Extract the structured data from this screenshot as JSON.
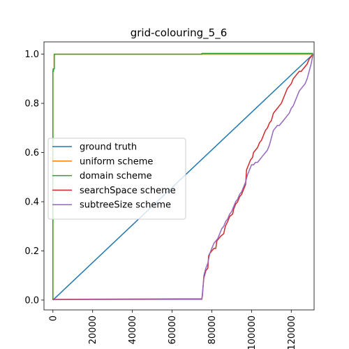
{
  "chart_data": {
    "type": "line",
    "title": "grid-colouring_5_6",
    "xlabel": "",
    "ylabel": "",
    "xlim": [
      -4500,
      131500
    ],
    "ylim": [
      -0.04,
      1.05
    ],
    "x_ticks": [
      0,
      20000,
      40000,
      60000,
      80000,
      100000,
      120000
    ],
    "x_tick_labels": [
      "0",
      "20000",
      "40000",
      "60000",
      "80000",
      "100000",
      "120000"
    ],
    "y_ticks": [
      0.0,
      0.2,
      0.4,
      0.6,
      0.8,
      1.0
    ],
    "y_tick_labels": [
      "0.0",
      "0.2",
      "0.4",
      "0.6",
      "0.8",
      "1.0"
    ],
    "grid": false,
    "legend_position": "center-left",
    "series": [
      {
        "name": "ground truth",
        "color": "#1f77b4",
        "points": [
          [
            0,
            0.0
          ],
          [
            131000,
            1.0
          ]
        ]
      },
      {
        "name": "uniform scheme",
        "color": "#ff7f0e",
        "points": [
          [
            0,
            0.0
          ],
          [
            0,
            0.94
          ],
          [
            600,
            0.94
          ],
          [
            600,
            1.0
          ],
          [
            131000,
            1.0
          ]
        ]
      },
      {
        "name": "domain scheme",
        "color": "#2ca02c",
        "points": [
          [
            0,
            0.0
          ],
          [
            0,
            0.93
          ],
          [
            300,
            0.93
          ],
          [
            300,
            0.94
          ],
          [
            700,
            0.94
          ],
          [
            700,
            1.0
          ],
          [
            75000,
            1.0
          ],
          [
            75000,
            1.003
          ],
          [
            131000,
            1.003
          ]
        ]
      },
      {
        "name": "searchSpace scheme",
        "color": "#d62728",
        "points": [
          [
            0,
            0.0
          ],
          [
            300,
            0.003
          ],
          [
            75000,
            0.005
          ],
          [
            75200,
            0.02
          ],
          [
            76000,
            0.09
          ],
          [
            77000,
            0.12
          ],
          [
            78000,
            0.13
          ],
          [
            78400,
            0.18
          ],
          [
            79000,
            0.19
          ],
          [
            80000,
            0.2
          ],
          [
            81000,
            0.21
          ],
          [
            82000,
            0.21
          ],
          [
            82500,
            0.24
          ],
          [
            83500,
            0.25
          ],
          [
            84500,
            0.26
          ],
          [
            86000,
            0.27
          ],
          [
            86800,
            0.3
          ],
          [
            88000,
            0.32
          ],
          [
            89000,
            0.34
          ],
          [
            90500,
            0.35
          ],
          [
            91000,
            0.37
          ],
          [
            92000,
            0.39
          ],
          [
            93000,
            0.4
          ],
          [
            94000,
            0.42
          ],
          [
            95000,
            0.43
          ],
          [
            96000,
            0.45
          ],
          [
            97000,
            0.47
          ],
          [
            97500,
            0.53
          ],
          [
            98500,
            0.55
          ],
          [
            99500,
            0.57
          ],
          [
            100500,
            0.58
          ],
          [
            101000,
            0.6
          ],
          [
            102000,
            0.61
          ],
          [
            103000,
            0.62
          ],
          [
            104000,
            0.64
          ],
          [
            105000,
            0.65
          ],
          [
            106000,
            0.67
          ],
          [
            107000,
            0.69
          ],
          [
            108000,
            0.7
          ],
          [
            109000,
            0.72
          ],
          [
            110000,
            0.73
          ],
          [
            111000,
            0.76
          ],
          [
            112000,
            0.77
          ],
          [
            113000,
            0.78
          ],
          [
            114000,
            0.79
          ],
          [
            115000,
            0.8
          ],
          [
            116000,
            0.82
          ],
          [
            117000,
            0.84
          ],
          [
            118000,
            0.86
          ],
          [
            119000,
            0.87
          ],
          [
            120000,
            0.88
          ],
          [
            121000,
            0.9
          ],
          [
            122000,
            0.91
          ],
          [
            123000,
            0.92
          ],
          [
            124000,
            0.93
          ],
          [
            125000,
            0.93
          ],
          [
            126000,
            0.94
          ],
          [
            127000,
            0.95
          ],
          [
            128000,
            0.96
          ],
          [
            129000,
            0.98
          ],
          [
            130000,
            0.99
          ],
          [
            131000,
            1.0
          ]
        ]
      },
      {
        "name": "subtreeSize scheme",
        "color": "#9467bd",
        "points": [
          [
            0,
            0.0
          ],
          [
            300,
            0.002
          ],
          [
            75000,
            0.003
          ],
          [
            75300,
            0.02
          ],
          [
            76000,
            0.1
          ],
          [
            77000,
            0.13
          ],
          [
            78000,
            0.15
          ],
          [
            79000,
            0.19
          ],
          [
            80000,
            0.21
          ],
          [
            81000,
            0.23
          ],
          [
            82000,
            0.24
          ],
          [
            83000,
            0.25
          ],
          [
            84000,
            0.27
          ],
          [
            85000,
            0.29
          ],
          [
            86000,
            0.3
          ],
          [
            87000,
            0.32
          ],
          [
            88000,
            0.33
          ],
          [
            89000,
            0.35
          ],
          [
            90000,
            0.36
          ],
          [
            91000,
            0.38
          ],
          [
            92000,
            0.4
          ],
          [
            93000,
            0.41
          ],
          [
            94000,
            0.43
          ],
          [
            95000,
            0.44
          ],
          [
            96000,
            0.46
          ],
          [
            97000,
            0.48
          ],
          [
            98000,
            0.51
          ],
          [
            99000,
            0.53
          ],
          [
            100000,
            0.55
          ],
          [
            101000,
            0.55
          ],
          [
            102000,
            0.56
          ],
          [
            103000,
            0.56
          ],
          [
            104000,
            0.57
          ],
          [
            105000,
            0.58
          ],
          [
            106000,
            0.59
          ],
          [
            107000,
            0.6
          ],
          [
            108000,
            0.61
          ],
          [
            109000,
            0.63
          ],
          [
            110000,
            0.66
          ],
          [
            111000,
            0.69
          ],
          [
            112000,
            0.7
          ],
          [
            113000,
            0.71
          ],
          [
            114000,
            0.71
          ],
          [
            115000,
            0.72
          ],
          [
            116000,
            0.73
          ],
          [
            117000,
            0.74
          ],
          [
            118000,
            0.75
          ],
          [
            119000,
            0.76
          ],
          [
            120000,
            0.78
          ],
          [
            121000,
            0.79
          ],
          [
            122000,
            0.81
          ],
          [
            123000,
            0.83
          ],
          [
            124000,
            0.85
          ],
          [
            125000,
            0.86
          ],
          [
            126000,
            0.87
          ],
          [
            127000,
            0.88
          ],
          [
            128000,
            0.9
          ],
          [
            129000,
            0.93
          ],
          [
            130000,
            0.96
          ],
          [
            131000,
            1.0
          ]
        ]
      }
    ]
  }
}
